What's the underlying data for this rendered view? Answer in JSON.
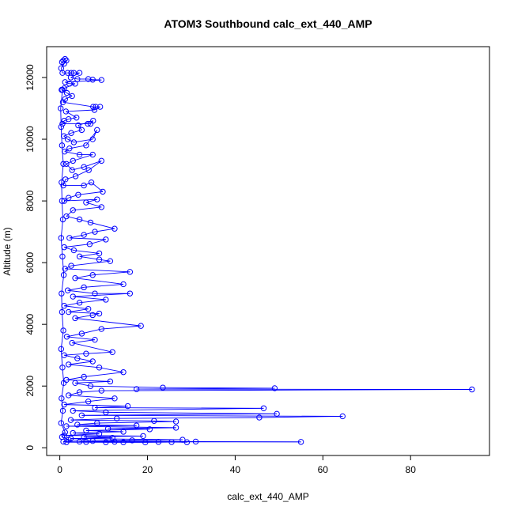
{
  "chart_data": {
    "type": "scatter",
    "title": "ATOM3 Southbound calc_ext_440_AMP",
    "xlabel": "calc_ext_440_AMP",
    "ylabel": "Altitude (m)",
    "xlim": [
      -3,
      98
    ],
    "ylim": [
      -250,
      13000
    ],
    "x_ticks": [
      0,
      20,
      40,
      60,
      80
    ],
    "y_ticks": [
      0,
      2000,
      4000,
      6000,
      8000,
      10000,
      12000
    ],
    "x_tick_labels": [
      "0",
      "20",
      "40",
      "60",
      "80"
    ],
    "y_tick_labels": [
      "0",
      "2000",
      "4000",
      "6000",
      "8000",
      "10000",
      "12000"
    ],
    "grid": false,
    "legend": "none",
    "series": [
      {
        "color": "#0000ff",
        "marker": "open-circle",
        "line": true,
        "points": [
          [
            0.8,
            12550
          ],
          [
            1.2,
            12600
          ],
          [
            0.5,
            12500
          ],
          [
            1.5,
            12550
          ],
          [
            1.0,
            12450
          ],
          [
            0.3,
            12300
          ],
          [
            0.6,
            12150
          ],
          [
            1.8,
            12150
          ],
          [
            2.6,
            12150
          ],
          [
            3.2,
            12150
          ],
          [
            4.5,
            12150
          ],
          [
            2.5,
            12000
          ],
          [
            4.0,
            11950
          ],
          [
            6.5,
            11950
          ],
          [
            7.5,
            11930
          ],
          [
            9.5,
            11920
          ],
          [
            1.2,
            11850
          ],
          [
            2.2,
            11800
          ],
          [
            3.5,
            11800
          ],
          [
            1.0,
            11650
          ],
          [
            0.4,
            11600
          ],
          [
            1.6,
            11500
          ],
          [
            2.8,
            11400
          ],
          [
            1.2,
            11300
          ],
          [
            0.7,
            11200
          ],
          [
            7.6,
            11050
          ],
          [
            8.2,
            11050
          ],
          [
            9.2,
            11050
          ],
          [
            7.9,
            10950
          ],
          [
            1.4,
            10900
          ],
          [
            3.8,
            10700
          ],
          [
            2.0,
            10650
          ],
          [
            1.0,
            10600
          ],
          [
            0.6,
            10500
          ],
          [
            6.4,
            10500
          ],
          [
            7.0,
            10500
          ],
          [
            7.6,
            10600
          ],
          [
            4.2,
            10450
          ],
          [
            5.0,
            10300
          ],
          [
            2.6,
            10200
          ],
          [
            0.9,
            10100
          ],
          [
            1.8,
            10000
          ],
          [
            3.2,
            9900
          ],
          [
            7.5,
            10000
          ],
          [
            8.5,
            10300
          ],
          [
            6.0,
            9800
          ],
          [
            2.2,
            9700
          ],
          [
            1.1,
            9600
          ],
          [
            4.5,
            9500
          ],
          [
            7.5,
            9500
          ],
          [
            3.0,
            9300
          ],
          [
            1.5,
            9200
          ],
          [
            2.8,
            9000
          ],
          [
            5.5,
            9100
          ],
          [
            9.5,
            9300
          ],
          [
            6.6,
            9000
          ],
          [
            3.6,
            8800
          ],
          [
            1.3,
            8700
          ],
          [
            0.8,
            8500
          ],
          [
            5.5,
            8500
          ],
          [
            7.2,
            8600
          ],
          [
            9.8,
            8300
          ],
          [
            4.2,
            8200
          ],
          [
            2.0,
            8100
          ],
          [
            1.0,
            8000
          ],
          [
            8.5,
            8050
          ],
          [
            6.0,
            7950
          ],
          [
            9.5,
            7800
          ],
          [
            3.0,
            7700
          ],
          [
            1.5,
            7500
          ],
          [
            4.5,
            7400
          ],
          [
            7.0,
            7300
          ],
          [
            12.5,
            7100
          ],
          [
            8.0,
            7000
          ],
          [
            5.5,
            6900
          ],
          [
            2.2,
            6800
          ],
          [
            10.5,
            6750
          ],
          [
            6.8,
            6600
          ],
          [
            1.0,
            6500
          ],
          [
            3.2,
            6400
          ],
          [
            9.0,
            6300
          ],
          [
            4.5,
            6200
          ],
          [
            9.0,
            6100
          ],
          [
            11.5,
            6050
          ],
          [
            2.6,
            5900
          ],
          [
            1.2,
            5800
          ],
          [
            16.0,
            5700
          ],
          [
            7.5,
            5600
          ],
          [
            3.5,
            5500
          ],
          [
            14.5,
            5300
          ],
          [
            5.5,
            5200
          ],
          [
            1.8,
            5100
          ],
          [
            8.0,
            5000
          ],
          [
            16.0,
            5000
          ],
          [
            3.0,
            4900
          ],
          [
            10.5,
            4800
          ],
          [
            4.5,
            4700
          ],
          [
            1.0,
            4600
          ],
          [
            6.5,
            4500
          ],
          [
            2.0,
            4400
          ],
          [
            9.0,
            4350
          ],
          [
            7.5,
            4300
          ],
          [
            3.5,
            4200
          ],
          [
            18.5,
            3950
          ],
          [
            9.5,
            3850
          ],
          [
            5.0,
            3700
          ],
          [
            1.6,
            3600
          ],
          [
            8.0,
            3500
          ],
          [
            2.8,
            3400
          ],
          [
            12.0,
            3100
          ],
          [
            6.0,
            3050
          ],
          [
            1.0,
            3000
          ],
          [
            4.0,
            2900
          ],
          [
            7.5,
            2800
          ],
          [
            2.0,
            2700
          ],
          [
            9.0,
            2600
          ],
          [
            14.5,
            2450
          ],
          [
            5.5,
            2300
          ],
          [
            1.5,
            2200
          ],
          [
            11.5,
            2150
          ],
          [
            3.5,
            2100
          ],
          [
            7.0,
            2000
          ],
          [
            23.5,
            1950
          ],
          [
            49.0,
            1930
          ],
          [
            17.5,
            1900
          ],
          [
            94.0,
            1890
          ],
          [
            9.5,
            1850
          ],
          [
            4.5,
            1800
          ],
          [
            2.0,
            1700
          ],
          [
            12.5,
            1600
          ],
          [
            6.5,
            1500
          ],
          [
            1.0,
            1400
          ],
          [
            15.5,
            1350
          ],
          [
            8.0,
            1300
          ],
          [
            46.5,
            1280
          ],
          [
            3.0,
            1200
          ],
          [
            10.5,
            1150
          ],
          [
            49.5,
            1100
          ],
          [
            5.0,
            1050
          ],
          [
            64.5,
            1020
          ],
          [
            45.5,
            980
          ],
          [
            13.0,
            950
          ],
          [
            2.5,
            900
          ],
          [
            21.5,
            870
          ],
          [
            26.5,
            850
          ],
          [
            8.5,
            800
          ],
          [
            4.0,
            750
          ],
          [
            17.5,
            720
          ],
          [
            1.5,
            700
          ],
          [
            26.5,
            650
          ],
          [
            11.0,
            620
          ],
          [
            20.5,
            600
          ],
          [
            6.0,
            560
          ],
          [
            14.5,
            520
          ],
          [
            3.0,
            480
          ],
          [
            9.0,
            450
          ],
          [
            1.0,
            400
          ],
          [
            19.0,
            380
          ],
          [
            5.5,
            350
          ],
          [
            12.0,
            320
          ],
          [
            2.5,
            300
          ],
          [
            28.0,
            260
          ],
          [
            16.5,
            240
          ],
          [
            7.5,
            220
          ],
          [
            31.0,
            200
          ],
          [
            55.0,
            190
          ],
          [
            22.5,
            190
          ],
          [
            29.0,
            180
          ],
          [
            4.5,
            200
          ],
          [
            10.5,
            180
          ],
          [
            14.5,
            180
          ],
          [
            25.5,
            185
          ],
          [
            19.5,
            175
          ],
          [
            1.5,
            180
          ],
          [
            0.8,
            200
          ],
          [
            6.0,
            190
          ],
          [
            12.5,
            195
          ],
          [
            2.0,
            260
          ],
          [
            0.5,
            350
          ],
          [
            1.2,
            500
          ],
          [
            0.3,
            800
          ],
          [
            0.7,
            1200
          ],
          [
            0.4,
            1600
          ],
          [
            0.9,
            2100
          ],
          [
            0.6,
            2600
          ],
          [
            0.3,
            3200
          ],
          [
            0.8,
            3800
          ],
          [
            0.5,
            4400
          ],
          [
            0.4,
            5000
          ],
          [
            0.9,
            5600
          ],
          [
            0.6,
            6200
          ],
          [
            0.3,
            6800
          ],
          [
            0.7,
            7400
          ],
          [
            0.5,
            8000
          ],
          [
            0.4,
            8600
          ],
          [
            0.8,
            9200
          ],
          [
            0.5,
            9800
          ],
          [
            0.3,
            10400
          ],
          [
            0.2,
            11000
          ],
          [
            0.6,
            11600
          ]
        ]
      }
    ]
  }
}
